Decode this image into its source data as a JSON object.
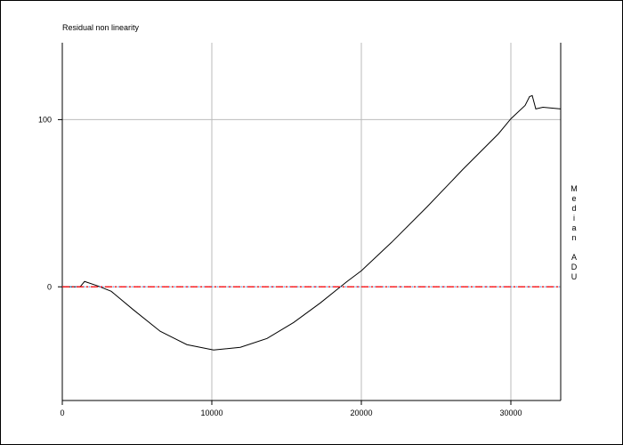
{
  "chart_data": {
    "type": "line",
    "title": "Residual non linearity",
    "y_axis_label": "Median ADU",
    "xlim": [
      0,
      33333
    ],
    "ylim": [
      -68,
      146
    ],
    "xticks": [
      0,
      10000,
      20000,
      30000
    ],
    "yticks": [
      0,
      100
    ],
    "grid": true,
    "series": [
      {
        "color": "#000000",
        "style": "solid",
        "x": [
          0,
          1190,
          1488,
          2381,
          3274,
          4762,
          6548,
          8333,
          10119,
          11905,
          13690,
          15476,
          17262,
          19048,
          20000,
          22024,
          24405,
          26786,
          29167,
          30000,
          30952,
          31250,
          31429,
          31667,
          32143,
          33333
        ],
        "values": [
          0,
          0,
          3.2,
          0.5,
          -2.7,
          -13.8,
          -26.6,
          -34.6,
          -37.8,
          -36.2,
          -30.9,
          -21.3,
          -9.6,
          3.2,
          9.6,
          26.6,
          47.9,
          70.2,
          91.5,
          100.5,
          108.5,
          113.8,
          114.4,
          106.4,
          107.4,
          106.4
        ]
      },
      {
        "color": "#6699ff",
        "style": "dotted",
        "x": [
          0,
          33333
        ],
        "values": [
          0,
          0
        ]
      },
      {
        "color": "#ff0000",
        "style": "dashdot",
        "x": [
          0,
          33333
        ],
        "values": [
          0,
          0
        ]
      }
    ]
  }
}
